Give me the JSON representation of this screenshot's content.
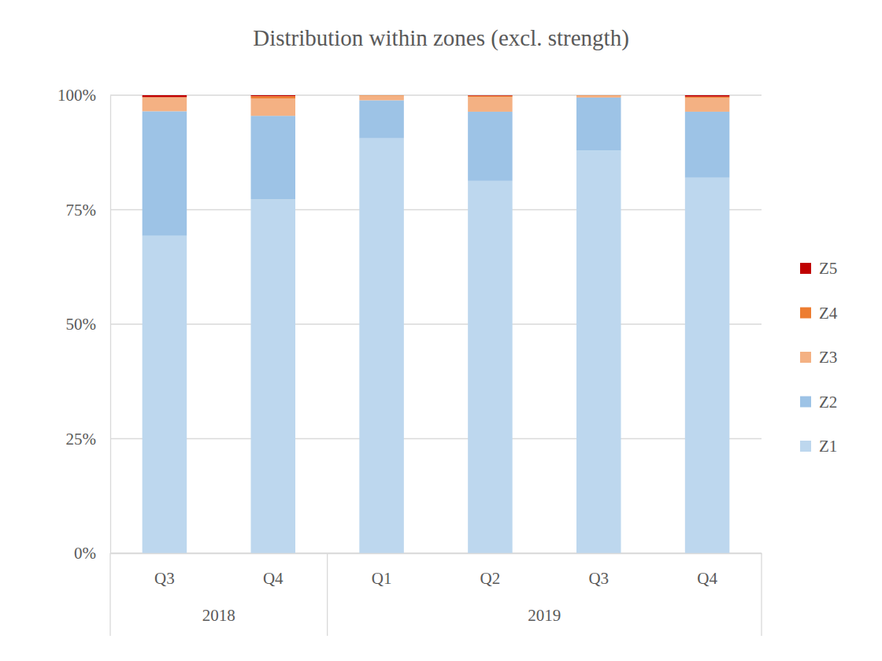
{
  "chart_data": {
    "type": "bar",
    "title": "Distribution within zones (excl. strength)",
    "categories": [
      "Q3",
      "Q4",
      "Q1",
      "Q2",
      "Q3",
      "Q4"
    ],
    "x_groups": [
      "2018",
      "2018",
      "2019",
      "2019",
      "2019",
      "2019"
    ],
    "series": [
      {
        "name": "Z1",
        "color": "#bdd7ee",
        "values": [
          69.3,
          77.3,
          90.6,
          81.3,
          87.9,
          82.0
        ]
      },
      {
        "name": "Z2",
        "color": "#9dc3e6",
        "values": [
          27.2,
          18.2,
          8.3,
          15.1,
          11.6,
          14.4
        ]
      },
      {
        "name": "Z3",
        "color": "#f4b183",
        "values": [
          3.0,
          3.8,
          1.0,
          3.2,
          0.4,
          3.0
        ]
      },
      {
        "name": "Z4",
        "color": "#ed7d31",
        "values": [
          0.1,
          0.5,
          0.1,
          0.3,
          0.1,
          0.3
        ]
      },
      {
        "name": "Z5",
        "color": "#c00000",
        "values": [
          0.4,
          0.2,
          0.0,
          0.1,
          0.0,
          0.3
        ]
      }
    ],
    "ylim": [
      0,
      100
    ],
    "yticks": [
      {
        "value": 0,
        "label": "0%"
      },
      {
        "value": 25,
        "label": "25%"
      },
      {
        "value": 50,
        "label": "50%"
      },
      {
        "value": 75,
        "label": "75%"
      },
      {
        "value": 100,
        "label": "100%"
      }
    ],
    "stacked": true,
    "grid": true,
    "legend": "right"
  }
}
